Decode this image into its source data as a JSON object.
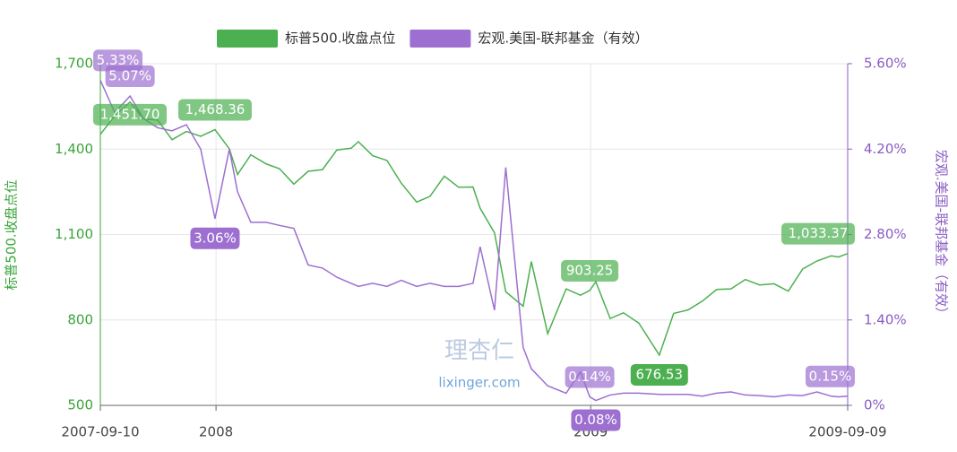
{
  "chart_data": {
    "type": "line",
    "x": [
      "2007-09-10",
      "2007-09-24",
      "2007-10-09",
      "2007-10-22",
      "2007-11-05",
      "2007-11-19",
      "2007-12-03",
      "2007-12-17",
      "2007-12-31",
      "2008-01-14",
      "2008-01-22",
      "2008-02-04",
      "2008-02-19",
      "2008-03-03",
      "2008-03-17",
      "2008-03-31",
      "2008-04-14",
      "2008-04-28",
      "2008-05-12",
      "2008-05-19",
      "2008-06-02",
      "2008-06-16",
      "2008-06-30",
      "2008-07-15",
      "2008-07-28",
      "2008-08-11",
      "2008-08-25",
      "2008-09-08",
      "2008-09-15",
      "2008-09-29",
      "2008-10-10",
      "2008-10-27",
      "2008-11-04",
      "2008-11-20",
      "2008-12-08",
      "2008-12-22",
      "2008-12-31",
      "2009-01-06",
      "2009-01-20",
      "2009-02-02",
      "2009-02-17",
      "2009-03-09",
      "2009-03-23",
      "2009-04-06",
      "2009-04-20",
      "2009-05-04",
      "2009-05-18",
      "2009-06-01",
      "2009-06-15",
      "2009-06-29",
      "2009-07-13",
      "2009-07-27",
      "2009-08-10",
      "2009-08-24",
      "2009-08-31",
      "2009-09-09"
    ],
    "xlim": [
      "2007-09-10",
      "2009-09-09"
    ],
    "xticks": [
      {
        "value": "2007-09-10",
        "label": "2007-09-10"
      },
      {
        "value": "2008-01-01",
        "label": "2008"
      },
      {
        "value": "2009-01-01",
        "label": "2009"
      },
      {
        "value": "2009-09-09",
        "label": "2009-09-09"
      }
    ],
    "ylabel": "标普500.收盘点位",
    "y2label": "宏观.美国-联邦基金（有效）",
    "ylim": [
      500,
      1700
    ],
    "yticks": [
      500,
      800,
      {
        "value": 1100,
        "label": "1,100"
      },
      {
        "value": 1400,
        "label": "1,400"
      },
      {
        "value": 1700,
        "label": "1,700"
      }
    ],
    "y2lim": [
      0,
      5.6
    ],
    "y2ticks": [
      {
        "value": 0,
        "label": "0%"
      },
      {
        "value": 1.4,
        "label": "1.40%"
      },
      {
        "value": 2.8,
        "label": "2.80%"
      },
      {
        "value": 4.2,
        "label": "4.20%"
      },
      {
        "value": 5.6,
        "label": "5.60%"
      }
    ],
    "grid": true,
    "series": [
      {
        "name": "标普500.收盘点位",
        "color": "#4caf50",
        "values": [
          1451.7,
          1517,
          1565,
          1506,
          1502,
          1433,
          1462,
          1445,
          1468.36,
          1401,
          1311,
          1380,
          1348,
          1331,
          1277,
          1322,
          1328,
          1397,
          1403,
          1426,
          1377,
          1360,
          1280,
          1214,
          1234,
          1305,
          1266,
          1267,
          1192,
          1106,
          899,
          848,
          1005,
          752,
          909,
          887,
          903.25,
          934,
          805,
          825,
          789,
          676.53,
          823,
          835,
          866,
          907,
          909,
          942,
          923,
          927,
          901,
          979,
          1007,
          1025,
          1021,
          1033.37
        ],
        "value_labels": [
          "1,451.70",
          null,
          null,
          null,
          null,
          null,
          null,
          null,
          "1,468.36",
          null,
          null,
          null,
          null,
          null,
          null,
          null,
          null,
          null,
          null,
          null,
          null,
          null,
          null,
          null,
          null,
          null,
          null,
          null,
          null,
          null,
          null,
          null,
          null,
          null,
          null,
          null,
          "903.25",
          null,
          null,
          null,
          null,
          "676.53",
          null,
          null,
          null,
          null,
          null,
          null,
          null,
          null,
          null,
          null,
          null,
          null,
          null,
          "1,033.37"
        ]
      },
      {
        "name": "宏观.美国-联邦基金（有效）",
        "color": "#9c6fd0",
        "axis": "y2",
        "values": [
          5.33,
          4.8,
          5.07,
          4.7,
          4.55,
          4.5,
          4.6,
          4.2,
          3.06,
          4.2,
          3.5,
          3.0,
          3.0,
          2.95,
          2.9,
          2.3,
          2.25,
          2.1,
          2.0,
          1.95,
          2.0,
          1.95,
          2.05,
          1.95,
          2.0,
          1.95,
          1.95,
          2.0,
          2.6,
          1.56,
          3.9,
          0.95,
          0.6,
          0.32,
          0.2,
          0.55,
          0.14,
          0.08,
          0.17,
          0.2,
          0.2,
          0.18,
          0.18,
          0.18,
          0.15,
          0.2,
          0.22,
          0.17,
          0.16,
          0.14,
          0.17,
          0.16,
          0.22,
          0.15,
          0.14,
          0.15
        ],
        "value_labels": [
          "5.33%",
          null,
          "5.07%",
          null,
          null,
          null,
          null,
          null,
          "3.06%",
          null,
          null,
          null,
          null,
          null,
          null,
          null,
          null,
          null,
          null,
          null,
          null,
          null,
          null,
          null,
          null,
          null,
          null,
          null,
          null,
          null,
          null,
          null,
          null,
          null,
          null,
          null,
          "0.14%",
          "0.08%",
          null,
          null,
          null,
          null,
          null,
          null,
          null,
          null,
          null,
          null,
          null,
          null,
          null,
          null,
          null,
          null,
          null,
          "0.15%"
        ]
      }
    ],
    "watermark": [
      "理杏仁",
      "lixinger.com"
    ]
  }
}
